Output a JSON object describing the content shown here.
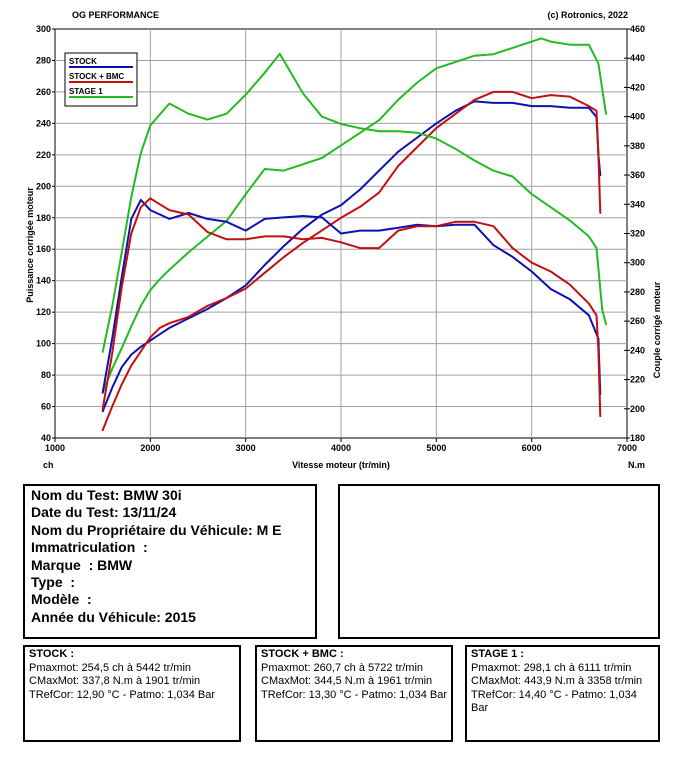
{
  "chart_data": {
    "type": "line",
    "header_left": "OG PERFORMANCE",
    "header_right": "(c) Rotronics, 2022",
    "xlabel": "Vitesse moteur (tr/min)",
    "x_unit": "ch",
    "x_unit_right": "N.m",
    "ylabel_left": "Puissance corrigée moteur",
    "ylabel_right": "Couple corrigé moteur",
    "xlim": [
      1000,
      7000
    ],
    "ylim_left": [
      40,
      300
    ],
    "ylim_right": [
      180,
      460
    ],
    "x_ticks": [
      1000,
      2000,
      3000,
      4000,
      5000,
      6000,
      7000
    ],
    "y_left_ticks": [
      40,
      60,
      80,
      100,
      120,
      140,
      160,
      180,
      200,
      220,
      240,
      260,
      280,
      300
    ],
    "y_right_ticks": [
      180,
      200,
      220,
      240,
      260,
      280,
      300,
      320,
      340,
      360,
      380,
      400,
      420,
      440,
      460
    ],
    "grid": true,
    "legend_position": "top-left",
    "series": [
      {
        "name": "STOCK",
        "color": "#1010b0",
        "kind": "power",
        "points": [
          [
            1500,
            57
          ],
          [
            1600,
            72
          ],
          [
            1700,
            85
          ],
          [
            1800,
            93
          ],
          [
            1900,
            98
          ],
          [
            2000,
            102
          ],
          [
            2100,
            106
          ],
          [
            2200,
            110
          ],
          [
            2400,
            116
          ],
          [
            2600,
            122
          ],
          [
            2800,
            129
          ],
          [
            3000,
            137
          ],
          [
            3200,
            150
          ],
          [
            3400,
            162
          ],
          [
            3600,
            173
          ],
          [
            3800,
            182
          ],
          [
            4000,
            188
          ],
          [
            4200,
            198
          ],
          [
            4400,
            210
          ],
          [
            4600,
            222
          ],
          [
            4800,
            231
          ],
          [
            5000,
            240
          ],
          [
            5200,
            248
          ],
          [
            5400,
            254
          ],
          [
            5600,
            253
          ],
          [
            5800,
            253
          ],
          [
            6000,
            251
          ],
          [
            6200,
            251
          ],
          [
            6400,
            250
          ],
          [
            6600,
            250
          ],
          [
            6680,
            244
          ],
          [
            6700,
            220
          ],
          [
            6720,
            207
          ]
        ]
      },
      {
        "name": "STOCK + BMC",
        "color": "#c01010",
        "kind": "power",
        "points": [
          [
            1500,
            45
          ],
          [
            1600,
            60
          ],
          [
            1700,
            74
          ],
          [
            1800,
            86
          ],
          [
            1900,
            95
          ],
          [
            2000,
            104
          ],
          [
            2100,
            110
          ],
          [
            2200,
            113
          ],
          [
            2400,
            117
          ],
          [
            2600,
            124
          ],
          [
            2800,
            129
          ],
          [
            3000,
            135
          ],
          [
            3200,
            145
          ],
          [
            3400,
            155
          ],
          [
            3600,
            164
          ],
          [
            3800,
            172
          ],
          [
            4000,
            180
          ],
          [
            4200,
            187
          ],
          [
            4400,
            196
          ],
          [
            4600,
            213
          ],
          [
            4800,
            225
          ],
          [
            5000,
            237
          ],
          [
            5200,
            246
          ],
          [
            5400,
            255
          ],
          [
            5600,
            260
          ],
          [
            5800,
            260
          ],
          [
            6000,
            256
          ],
          [
            6200,
            258
          ],
          [
            6400,
            257
          ],
          [
            6600,
            251
          ],
          [
            6680,
            248
          ],
          [
            6700,
            220
          ],
          [
            6720,
            183
          ]
        ]
      },
      {
        "name": "STAGE 1",
        "color": "#22bb22",
        "kind": "power",
        "points": [
          [
            1500,
            69
          ],
          [
            1600,
            84
          ],
          [
            1700,
            97
          ],
          [
            1800,
            111
          ],
          [
            1900,
            124
          ],
          [
            2000,
            134
          ],
          [
            2100,
            141
          ],
          [
            2200,
            147
          ],
          [
            2400,
            158
          ],
          [
            2600,
            168
          ],
          [
            2800,
            178
          ],
          [
            3000,
            195
          ],
          [
            3200,
            211
          ],
          [
            3400,
            210
          ],
          [
            3600,
            214
          ],
          [
            3800,
            218
          ],
          [
            4000,
            226
          ],
          [
            4200,
            234
          ],
          [
            4400,
            242
          ],
          [
            4600,
            255
          ],
          [
            4800,
            266
          ],
          [
            5000,
            275
          ],
          [
            5200,
            279
          ],
          [
            5400,
            283
          ],
          [
            5600,
            284
          ],
          [
            5800,
            288
          ],
          [
            6000,
            292
          ],
          [
            6100,
            294
          ],
          [
            6200,
            292
          ],
          [
            6400,
            290
          ],
          [
            6600,
            290
          ],
          [
            6700,
            278
          ],
          [
            6780,
            246
          ]
        ]
      },
      {
        "name": "STOCK",
        "color": "#1010b0",
        "kind": "torque",
        "points": [
          [
            1500,
            211
          ],
          [
            1600,
            248
          ],
          [
            1700,
            290
          ],
          [
            1800,
            330
          ],
          [
            1900,
            343
          ],
          [
            2000,
            336
          ],
          [
            2100,
            333
          ],
          [
            2200,
            330
          ],
          [
            2400,
            334
          ],
          [
            2600,
            330
          ],
          [
            2800,
            328
          ],
          [
            3000,
            322
          ],
          [
            3200,
            330
          ],
          [
            3400,
            331
          ],
          [
            3600,
            332
          ],
          [
            3800,
            331
          ],
          [
            4000,
            320
          ],
          [
            4200,
            322
          ],
          [
            4400,
            322
          ],
          [
            4600,
            324
          ],
          [
            4800,
            326
          ],
          [
            5000,
            325
          ],
          [
            5200,
            326
          ],
          [
            5400,
            326
          ],
          [
            5600,
            312
          ],
          [
            5800,
            304
          ],
          [
            6000,
            294
          ],
          [
            6200,
            282
          ],
          [
            6400,
            275
          ],
          [
            6600,
            264
          ],
          [
            6700,
            248
          ],
          [
            6720,
            210
          ]
        ]
      },
      {
        "name": "STOCK + BMC",
        "color": "#c01010",
        "kind": "torque",
        "points": [
          [
            1500,
            200
          ],
          [
            1600,
            238
          ],
          [
            1700,
            283
          ],
          [
            1800,
            320
          ],
          [
            1900,
            338
          ],
          [
            2000,
            344
          ],
          [
            2100,
            340
          ],
          [
            2200,
            336
          ],
          [
            2400,
            333
          ],
          [
            2600,
            321
          ],
          [
            2800,
            316
          ],
          [
            3000,
            316
          ],
          [
            3200,
            318
          ],
          [
            3400,
            318
          ],
          [
            3600,
            316
          ],
          [
            3800,
            317
          ],
          [
            4000,
            314
          ],
          [
            4200,
            310
          ],
          [
            4400,
            310
          ],
          [
            4600,
            322
          ],
          [
            4800,
            325
          ],
          [
            5000,
            325
          ],
          [
            5200,
            328
          ],
          [
            5400,
            328
          ],
          [
            5600,
            325
          ],
          [
            5800,
            310
          ],
          [
            6000,
            300
          ],
          [
            6200,
            294
          ],
          [
            6400,
            285
          ],
          [
            6600,
            272
          ],
          [
            6680,
            264
          ],
          [
            6700,
            240
          ],
          [
            6720,
            195
          ]
        ]
      },
      {
        "name": "STAGE 1",
        "color": "#22bb22",
        "kind": "torque",
        "points": [
          [
            1500,
            239
          ],
          [
            1600,
            270
          ],
          [
            1700,
            307
          ],
          [
            1800,
            345
          ],
          [
            1900,
            375
          ],
          [
            2000,
            394
          ],
          [
            2200,
            409
          ],
          [
            2400,
            402
          ],
          [
            2600,
            398
          ],
          [
            2800,
            402
          ],
          [
            3000,
            415
          ],
          [
            3200,
            430
          ],
          [
            3358,
            443
          ],
          [
            3600,
            416
          ],
          [
            3800,
            400
          ],
          [
            4000,
            395
          ],
          [
            4200,
            392
          ],
          [
            4400,
            390
          ],
          [
            4600,
            390
          ],
          [
            4800,
            389
          ],
          [
            5000,
            385
          ],
          [
            5200,
            378
          ],
          [
            5400,
            370
          ],
          [
            5600,
            363
          ],
          [
            5800,
            359
          ],
          [
            6000,
            347
          ],
          [
            6200,
            338
          ],
          [
            6400,
            329
          ],
          [
            6600,
            318
          ],
          [
            6680,
            310
          ],
          [
            6740,
            268
          ],
          [
            6780,
            258
          ]
        ]
      }
    ]
  },
  "test_info": {
    "nom": "Nom du Test: BMW 30i",
    "date": "Date du Test: 13/11/24",
    "proprietaire": "Nom du Propriétaire du Véhicule: M E",
    "immat": "Immatriculation  :",
    "marque": "Marque  : BMW",
    "type": "Type  :",
    "modele": "Modèle  :",
    "annee": "Année du Véhicule: 2015"
  },
  "results": {
    "stock": {
      "title": "STOCK :",
      "l1": "Pmaxmot: 254,5 ch à 5442 tr/min",
      "l2": "CMaxMot: 337,8 N.m à 1901 tr/min",
      "l3": "TRefCor: 12,90 °C - Patmo: 1,034 Bar"
    },
    "bmc": {
      "title": "STOCK + BMC :",
      "l1": "Pmaxmot: 260,7 ch à 5722 tr/min",
      "l2": "CMaxMot: 344,5 N.m à 1961 tr/min",
      "l3": "TRefCor: 13,30 °C - Patmo: 1,034 Bar"
    },
    "stage1": {
      "title": "STAGE 1 :",
      "l1": "Pmaxmot: 298,1 ch à 6111 tr/min",
      "l2": "CMaxMot: 443,9 N.m à 3358 tr/min",
      "l3": "TRefCor: 14,40 °C - Patmo: 1,034 Bar"
    }
  }
}
